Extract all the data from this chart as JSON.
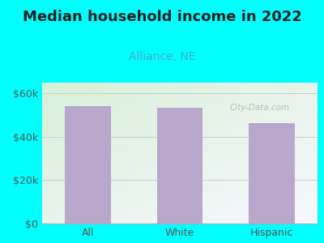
{
  "title": "Median household income in 2022",
  "subtitle": "Alliance, NE",
  "categories": [
    "All",
    "White",
    "Hispanic"
  ],
  "values": [
    54000,
    53500,
    46500
  ],
  "bar_color": "#b8a8cc",
  "background_outer": "#00FFFF",
  "background_plot_topleft": "#d8f0d8",
  "background_plot_bottomright": "#f8f8ff",
  "title_fontsize": 13,
  "subtitle_fontsize": 10,
  "subtitle_color": "#44aacc",
  "title_color": "#222222",
  "tick_label_color": "#555555",
  "ylim": [
    0,
    65000
  ],
  "yticks": [
    0,
    20000,
    40000,
    60000
  ],
  "ytick_labels": [
    "$0",
    "$20k",
    "$40k",
    "$60k"
  ],
  "watermark": "City-Data.com"
}
